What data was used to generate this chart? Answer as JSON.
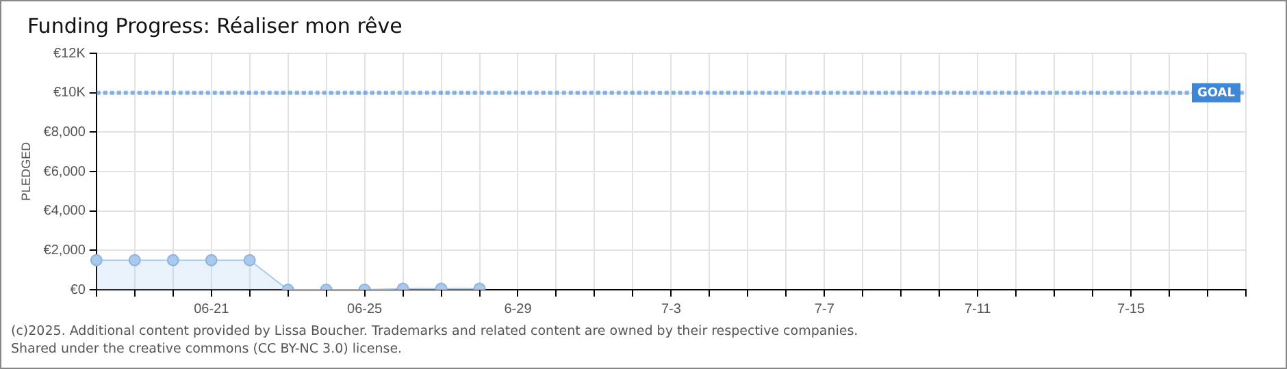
{
  "chart_data": {
    "type": "area",
    "title": "Funding Progress: Réaliser mon rêve",
    "ylabel": "PLEDGED",
    "categories": [
      null,
      null,
      null,
      "06-21",
      null,
      null,
      null,
      "06-25",
      null,
      null,
      null,
      "6-29",
      null,
      null,
      null,
      "7-3",
      null,
      null,
      null,
      "7-7",
      null,
      null,
      null,
      "7-11",
      null,
      null,
      null,
      "7-15",
      null,
      null,
      null
    ],
    "series": [
      {
        "color": "#a9c9ec",
        "values": [
          1500,
          1500,
          1500,
          1500,
          1500,
          0,
          0,
          0,
          50,
          50,
          50,
          null,
          null,
          null,
          null,
          null,
          null,
          null,
          null,
          null,
          null,
          null,
          null,
          null,
          null,
          null,
          null,
          null,
          null,
          null,
          null
        ]
      }
    ],
    "ylim": [
      0,
      12000
    ],
    "yticks": [
      {
        "value": 0,
        "label": "€0"
      },
      {
        "value": 2000,
        "label": "€2,000"
      },
      {
        "value": 4000,
        "label": "€4,000"
      },
      {
        "value": 6000,
        "label": "€6,000"
      },
      {
        "value": 8000,
        "label": "€8,000"
      },
      {
        "value": 10000,
        "label": "€10K"
      },
      {
        "value": 12000,
        "label": "€12K"
      }
    ],
    "ref_lines": [
      {
        "axis": "y",
        "value": 10000,
        "label": "GOAL",
        "color": "#3d86d8",
        "line_style": "dotted"
      }
    ],
    "grid": true,
    "legend": false,
    "marker": "circle",
    "annotations": [
      "(c)2025. Additional content provided by Lissa Boucher. Trademarks and related content are owned by their respective companies.",
      "Shared under the creative commons (CC BY-NC 3.0) license."
    ]
  }
}
